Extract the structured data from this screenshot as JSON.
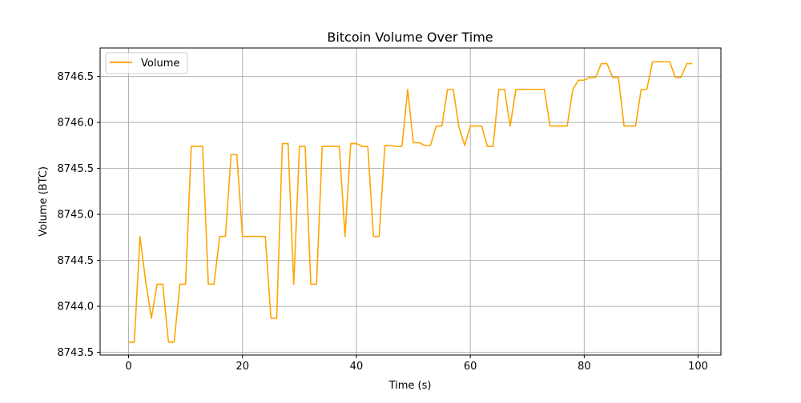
{
  "chart_data": {
    "type": "line",
    "title": "Bitcoin Volume Over Time",
    "xlabel": "Time (s)",
    "ylabel": "Volume (BTC)",
    "xlim": [
      -5,
      104
    ],
    "ylim": [
      8743.47,
      8746.81
    ],
    "xticks": [
      0,
      20,
      40,
      60,
      80,
      100
    ],
    "xtick_labels": [
      "0",
      "20",
      "40",
      "60",
      "80",
      "100"
    ],
    "yticks": [
      8743.5,
      8744.0,
      8744.5,
      8745.0,
      8745.5,
      8746.0,
      8746.5
    ],
    "ytick_labels": [
      "8743.5",
      "8744.0",
      "8744.5",
      "8745.0",
      "8745.5",
      "8746.0",
      "8746.5"
    ],
    "grid": true,
    "legend_position": "upper-left",
    "series": [
      {
        "name": "Volume",
        "color": "#FFA500",
        "x": [
          0,
          1,
          2,
          3,
          4,
          5,
          6,
          7,
          8,
          9,
          10,
          11,
          12,
          13,
          14,
          15,
          16,
          17,
          18,
          19,
          20,
          21,
          22,
          23,
          24,
          25,
          26,
          27,
          28,
          29,
          30,
          31,
          32,
          33,
          34,
          35,
          36,
          37,
          38,
          39,
          40,
          41,
          42,
          43,
          44,
          45,
          46,
          47,
          48,
          49,
          50,
          51,
          52,
          53,
          54,
          55,
          56,
          57,
          58,
          59,
          60,
          61,
          62,
          63,
          64,
          65,
          66,
          67,
          68,
          69,
          70,
          71,
          72,
          73,
          74,
          75,
          76,
          77,
          78,
          79,
          80,
          81,
          82,
          83,
          84,
          85,
          86,
          87,
          88,
          89,
          90,
          91,
          92,
          93,
          94,
          95,
          96,
          97,
          98,
          99
        ],
        "y": [
          8743.61,
          8743.61,
          8744.76,
          8744.27,
          8743.87,
          8744.24,
          8744.24,
          8743.61,
          8743.61,
          8744.24,
          8744.24,
          8745.74,
          8745.74,
          8745.74,
          8744.24,
          8744.24,
          8744.76,
          8744.76,
          8745.65,
          8745.65,
          8744.76,
          8744.76,
          8744.76,
          8744.76,
          8744.76,
          8743.87,
          8743.87,
          8745.77,
          8745.77,
          8744.24,
          8745.74,
          8745.74,
          8744.24,
          8744.24,
          8745.74,
          8745.74,
          8745.74,
          8745.74,
          8744.76,
          8745.77,
          8745.77,
          8745.74,
          8745.74,
          8744.76,
          8744.76,
          8745.75,
          8745.75,
          8745.74,
          8745.74,
          8746.36,
          8745.78,
          8745.78,
          8745.75,
          8745.75,
          8745.96,
          8745.96,
          8746.36,
          8746.36,
          8745.95,
          8745.75,
          8745.96,
          8745.96,
          8745.96,
          8745.74,
          8745.74,
          8746.36,
          8746.36,
          8745.96,
          8746.36,
          8746.36,
          8746.36,
          8746.36,
          8746.36,
          8746.36,
          8745.96,
          8745.96,
          8745.96,
          8745.96,
          8746.36,
          8746.46,
          8746.46,
          8746.49,
          8746.49,
          8746.64,
          8746.64,
          8746.49,
          8746.49,
          8745.96,
          8745.96,
          8745.96,
          8746.36,
          8746.36,
          8746.66,
          8746.66,
          8746.66,
          8746.66,
          8746.49,
          8746.49,
          8746.64,
          8746.64
        ]
      }
    ]
  }
}
